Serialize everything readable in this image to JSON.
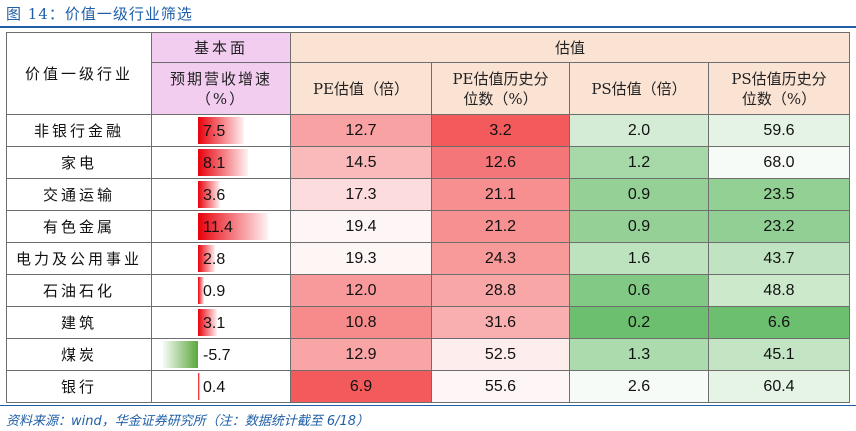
{
  "title": "图 14：价值一级行业筛选",
  "source": "资料来源：wind，华金证券研究所（注：数据统计截至 6/18）",
  "headers": {
    "industry": "价值一级行业",
    "fundamentals_group": "基本面",
    "valuation_group": "估值",
    "growth": "预期营收增速（%）",
    "pe": "PE估值（倍）",
    "pe_pct": "PE估值历史分位数（%）",
    "ps": "PS估值（倍）",
    "ps_pct": "PS估值历史分位数（%）"
  },
  "colors": {
    "growth_positive": "#e8000b",
    "growth_negative": "#5aa83c",
    "pe_heat": "#f2484a",
    "ps_heat": "#5cb85f"
  },
  "rows": [
    {
      "industry": "非银行金融",
      "growth": "7.5",
      "growth_value": 7.5,
      "pe": "12.7",
      "pe_value": 12.7,
      "pe_pct": "3.2",
      "pe_pct_value": 3.2,
      "ps": "2.0",
      "ps_value": 2.0,
      "ps_pct": "59.6",
      "ps_pct_value": 59.6
    },
    {
      "industry": "家电",
      "growth": "8.1",
      "growth_value": 8.1,
      "pe": "14.5",
      "pe_value": 14.5,
      "pe_pct": "12.6",
      "pe_pct_value": 12.6,
      "ps": "1.2",
      "ps_value": 1.2,
      "ps_pct": "68.0",
      "ps_pct_value": 68.0
    },
    {
      "industry": "交通运输",
      "growth": "3.6",
      "growth_value": 3.6,
      "pe": "17.3",
      "pe_value": 17.3,
      "pe_pct": "21.1",
      "pe_pct_value": 21.1,
      "ps": "0.9",
      "ps_value": 0.9,
      "ps_pct": "23.5",
      "ps_pct_value": 23.5
    },
    {
      "industry": "有色金属",
      "growth": "11.4",
      "growth_value": 11.4,
      "pe": "19.4",
      "pe_value": 19.4,
      "pe_pct": "21.2",
      "pe_pct_value": 21.2,
      "ps": "0.9",
      "ps_value": 0.9,
      "ps_pct": "23.2",
      "ps_pct_value": 23.2
    },
    {
      "industry": "电力及公用事业",
      "growth": "2.8",
      "growth_value": 2.8,
      "pe": "19.3",
      "pe_value": 19.3,
      "pe_pct": "24.3",
      "pe_pct_value": 24.3,
      "ps": "1.6",
      "ps_value": 1.6,
      "ps_pct": "43.7",
      "ps_pct_value": 43.7
    },
    {
      "industry": "石油石化",
      "growth": "0.9",
      "growth_value": 0.9,
      "pe": "12.0",
      "pe_value": 12.0,
      "pe_pct": "28.8",
      "pe_pct_value": 28.8,
      "ps": "0.6",
      "ps_value": 0.6,
      "ps_pct": "48.8",
      "ps_pct_value": 48.8
    },
    {
      "industry": "建筑",
      "growth": "3.1",
      "growth_value": 3.1,
      "pe": "10.8",
      "pe_value": 10.8,
      "pe_pct": "31.6",
      "pe_pct_value": 31.6,
      "ps": "0.2",
      "ps_value": 0.2,
      "ps_pct": "6.6",
      "ps_pct_value": 6.6
    },
    {
      "industry": "煤炭",
      "growth": "-5.7",
      "growth_value": -5.7,
      "pe": "12.9",
      "pe_value": 12.9,
      "pe_pct": "52.5",
      "pe_pct_value": 52.5,
      "ps": "1.3",
      "ps_value": 1.3,
      "ps_pct": "45.1",
      "ps_pct_value": 45.1
    },
    {
      "industry": "银行",
      "growth": "0.4",
      "growth_value": 0.4,
      "pe": "6.9",
      "pe_value": 6.9,
      "pe_pct": "55.6",
      "pe_pct_value": 55.6,
      "ps": "2.6",
      "ps_value": 2.6,
      "ps_pct": "60.4",
      "ps_pct_value": 60.4
    }
  ]
}
